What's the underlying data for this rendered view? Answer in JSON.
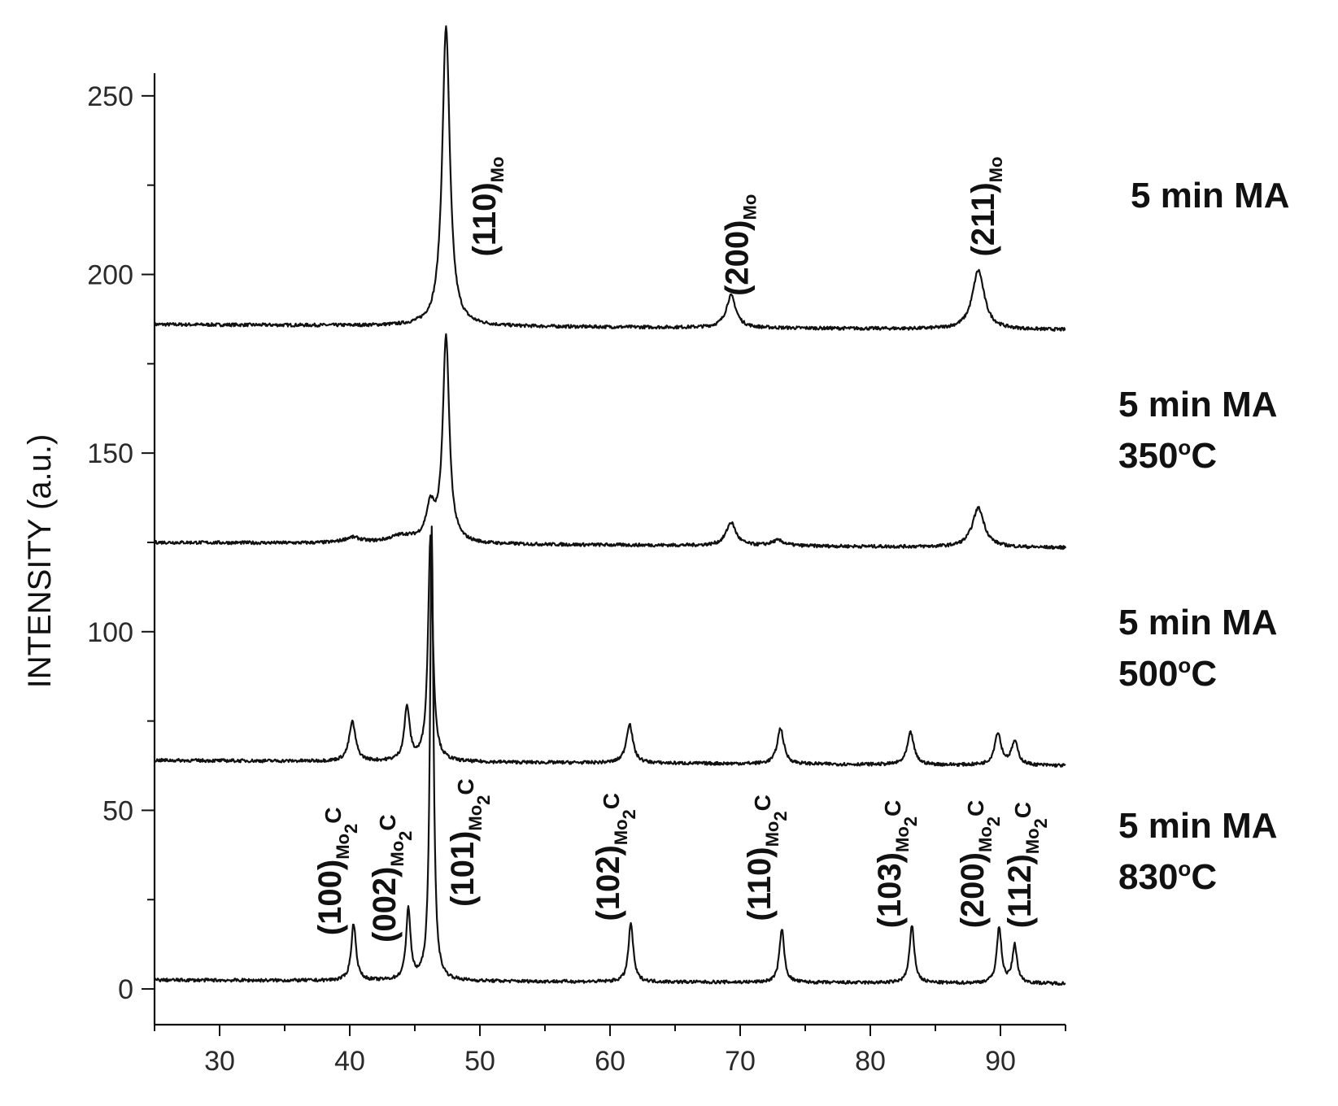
{
  "chart_data": {
    "type": "line",
    "ylabel": "INTENSITY (a.u.)",
    "xlabel": "",
    "xlim": [
      25,
      95
    ],
    "ylim": [
      -10,
      270
    ],
    "x_ticks": [
      30,
      40,
      50,
      60,
      70,
      80,
      90
    ],
    "y_ticks": [
      0,
      50,
      100,
      150,
      200,
      250
    ],
    "grid": false,
    "series": [
      {
        "name": "5 min MA",
        "label_lines": [
          "5 min MA"
        ],
        "baseline_start": 186,
        "baseline_end": 184.5,
        "peaks": [
          {
            "x": 47.4,
            "height": 84,
            "width": 0.35
          },
          {
            "x": 69.3,
            "height": 9,
            "width": 0.45
          },
          {
            "x": 88.3,
            "height": 16.5,
            "width": 0.55
          }
        ]
      },
      {
        "name": "5 min MA 350°C",
        "label_lines": [
          "5 min MA",
          "350°C"
        ],
        "baseline_start": 125,
        "baseline_end": 123.5,
        "peaks": [
          {
            "x": 40.2,
            "height": 1.5,
            "width": 0.8
          },
          {
            "x": 44.0,
            "height": 2.0,
            "width": 1.2
          },
          {
            "x": 46.2,
            "height": 9.5,
            "width": 0.4
          },
          {
            "x": 47.4,
            "height": 57.5,
            "width": 0.3
          },
          {
            "x": 69.3,
            "height": 6.5,
            "width": 0.45
          },
          {
            "x": 72.9,
            "height": 1.5,
            "width": 0.6
          },
          {
            "x": 88.3,
            "height": 11,
            "width": 0.55
          }
        ]
      },
      {
        "name": "5 min MA 500°C",
        "label_lines": [
          "5 min MA",
          "500°C"
        ],
        "baseline_start": 64,
        "baseline_end": 62.5,
        "peaks": [
          {
            "x": 40.2,
            "height": 11,
            "width": 0.3
          },
          {
            "x": 44.4,
            "height": 15,
            "width": 0.25
          },
          {
            "x": 46.2,
            "height": 63,
            "width": 0.22
          },
          {
            "x": 61.5,
            "height": 11,
            "width": 0.3
          },
          {
            "x": 73.1,
            "height": 10,
            "width": 0.3
          },
          {
            "x": 83.1,
            "height": 9,
            "width": 0.3
          },
          {
            "x": 89.8,
            "height": 9,
            "width": 0.3
          },
          {
            "x": 91.1,
            "height": 6.5,
            "width": 0.3
          }
        ]
      },
      {
        "name": "5 min MA 830°C",
        "label_lines": [
          "5 min MA",
          "830°C"
        ],
        "baseline_start": 2.5,
        "baseline_end": 1.5,
        "peaks": [
          {
            "x": 40.3,
            "height": 16,
            "width": 0.22
          },
          {
            "x": 44.5,
            "height": 20,
            "width": 0.2
          },
          {
            "x": 46.3,
            "height": 127,
            "width": 0.16
          },
          {
            "x": 61.6,
            "height": 16.5,
            "width": 0.22
          },
          {
            "x": 73.2,
            "height": 15,
            "width": 0.22
          },
          {
            "x": 83.2,
            "height": 16,
            "width": 0.22
          },
          {
            "x": 89.9,
            "height": 15.5,
            "width": 0.22
          },
          {
            "x": 91.1,
            "height": 10.5,
            "width": 0.22
          }
        ]
      }
    ],
    "annotations": [
      {
        "main": "(110)",
        "sub": "Mo",
        "x": 51.2,
        "y": 205
      },
      {
        "main": "(200)",
        "sub": "Mo",
        "x": 70.6,
        "y": 194
      },
      {
        "main": "(211)",
        "sub": "Mo",
        "x": 89.5,
        "y": 205
      },
      {
        "main": "(100)",
        "sub": "Mo2C",
        "x": 39.3,
        "y": 15
      },
      {
        "main": "(002)",
        "sub": "Mo2C",
        "x": 43.5,
        "y": 13
      },
      {
        "main": "(101)",
        "sub": "Mo2C",
        "x": 49.5,
        "y": 23
      },
      {
        "main": "(102)",
        "sub": "Mo2C",
        "x": 60.7,
        "y": 19
      },
      {
        "main": "(110)",
        "sub": "Mo2C",
        "x": 72.3,
        "y": 19
      },
      {
        "main": "(103)",
        "sub": "Mo2C",
        "x": 82.3,
        "y": 17
      },
      {
        "main": "(200)",
        "sub": "Mo2C",
        "x": 88.7,
        "y": 17
      },
      {
        "main": "(112)",
        "sub": "Mo2C",
        "x": 92.3,
        "y": 17
      }
    ]
  }
}
